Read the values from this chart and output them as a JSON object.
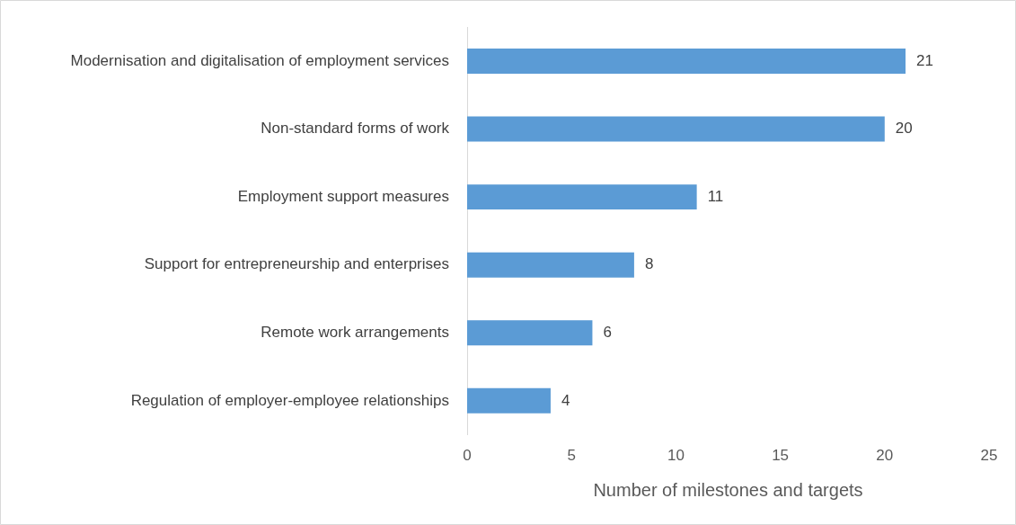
{
  "chart_data": {
    "type": "bar",
    "orientation": "horizontal",
    "xlabel": "Number of milestones and targets",
    "categories": [
      "Modernisation and digitalisation of employment services",
      "Non-standard forms of work",
      "Employment support measures",
      "Support for entrepreneurship and enterprises",
      "Remote work arrangements",
      "Regulation of employer-employee relationships"
    ],
    "values": [
      21,
      20,
      11,
      8,
      6,
      4
    ],
    "color": "#5b9bd5",
    "xlim": [
      0,
      25
    ],
    "xticks": [
      0,
      5,
      10,
      15,
      20,
      25
    ],
    "grid": false,
    "legend": false,
    "data_labels": true
  }
}
